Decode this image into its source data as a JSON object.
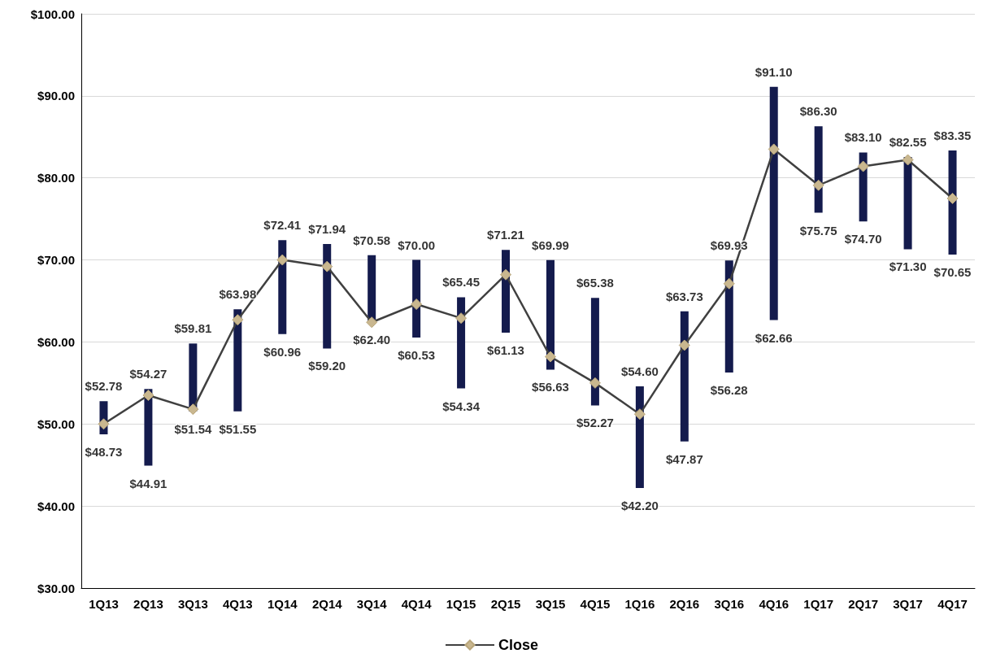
{
  "chart_data": {
    "type": "bar",
    "categories": [
      "1Q13",
      "2Q13",
      "3Q13",
      "4Q13",
      "1Q14",
      "2Q14",
      "3Q14",
      "4Q14",
      "1Q15",
      "2Q15",
      "3Q15",
      "4Q15",
      "1Q16",
      "2Q16",
      "3Q16",
      "4Q16",
      "1Q17",
      "2Q17",
      "3Q17",
      "4Q17"
    ],
    "series": [
      {
        "color": "#141b4d",
        "base": [
          48.73,
          44.91,
          51.54,
          51.55,
          60.96,
          59.2,
          62.4,
          60.53,
          54.34,
          61.13,
          56.63,
          52.27,
          42.2,
          47.87,
          56.28,
          62.66,
          75.75,
          74.7,
          71.3,
          70.65
        ],
        "values": [
          4.05,
          9.36,
          8.27,
          12.43,
          11.45,
          12.74,
          8.18,
          9.47,
          11.11,
          10.08,
          13.36,
          13.11,
          12.4,
          15.86,
          13.65,
          28.44,
          10.55,
          8.4,
          11.25,
          12.7
        ]
      },
      {
        "type": "line",
        "name": "Close",
        "color": "#404040",
        "colors": [
          "#c9b78f",
          "#c9b78f",
          "#c9b78f",
          "#c9b78f",
          "#c9b78f",
          "#c9b78f",
          "#c9b78f",
          "#c9b78f",
          "#c9b78f",
          "#c9b78f",
          "#c9b78f",
          "#c9b78f",
          "#c9b78f",
          "#c9b78f",
          "#c9b78f",
          "#c9b78f",
          "#c9b78f",
          "#c9b78f",
          "#c9b78f",
          "#c9b78f"
        ],
        "marker": "diamond",
        "values": [
          50.0,
          53.5,
          51.8,
          62.7,
          70.0,
          69.2,
          62.4,
          64.6,
          62.9,
          68.2,
          58.2,
          55.0,
          51.2,
          59.6,
          67.1,
          83.5,
          79.1,
          81.4,
          82.2,
          77.5
        ]
      }
    ],
    "ylim": [
      30,
      100
    ],
    "yticks": [
      {
        "value": 30,
        "label": "$30.00"
      },
      {
        "value": 40,
        "label": "$40.00"
      },
      {
        "value": 50,
        "label": "$50.00"
      },
      {
        "value": 60,
        "label": "$60.00"
      },
      {
        "value": 70,
        "label": "$70.00"
      },
      {
        "value": 80,
        "label": "$80.00"
      },
      {
        "value": 90,
        "label": "$90.00"
      },
      {
        "value": 100,
        "label": "$100.00"
      }
    ],
    "grid": "y",
    "legend": "bottom",
    "annotations": [
      {
        "text": "$52.78",
        "x": "1Q13",
        "y": 52.78
      },
      {
        "text": "$48.73",
        "x": "1Q13",
        "y": 48.73
      },
      {
        "text": "$54.27",
        "x": "2Q13",
        "y": 54.27
      },
      {
        "text": "$44.91",
        "x": "2Q13",
        "y": 44.91
      },
      {
        "text": "$59.81",
        "x": "3Q13",
        "y": 59.81
      },
      {
        "text": "$51.54",
        "x": "3Q13",
        "y": 51.54
      },
      {
        "text": "$63.98",
        "x": "4Q13",
        "y": 63.98
      },
      {
        "text": "$51.55",
        "x": "4Q13",
        "y": 51.55
      },
      {
        "text": "$72.41",
        "x": "1Q14",
        "y": 72.41
      },
      {
        "text": "$60.96",
        "x": "1Q14",
        "y": 60.96
      },
      {
        "text": "$71.94",
        "x": "2Q14",
        "y": 71.94
      },
      {
        "text": "$59.20",
        "x": "2Q14",
        "y": 59.2
      },
      {
        "text": "$70.58",
        "x": "3Q14",
        "y": 70.58
      },
      {
        "text": "$62.40",
        "x": "3Q14",
        "y": 62.4
      },
      {
        "text": "$70.00",
        "x": "4Q14",
        "y": 70.0
      },
      {
        "text": "$60.53",
        "x": "4Q14",
        "y": 60.53
      },
      {
        "text": "$65.45",
        "x": "1Q15",
        "y": 65.45
      },
      {
        "text": "$54.34",
        "x": "1Q15",
        "y": 54.34
      },
      {
        "text": "$71.21",
        "x": "2Q15",
        "y": 71.21
      },
      {
        "text": "$61.13",
        "x": "2Q15",
        "y": 61.13
      },
      {
        "text": "$69.99",
        "x": "3Q15",
        "y": 69.99
      },
      {
        "text": "$56.63",
        "x": "3Q15",
        "y": 56.63
      },
      {
        "text": "$65.38",
        "x": "4Q15",
        "y": 65.38
      },
      {
        "text": "$52.27",
        "x": "4Q15",
        "y": 52.27
      },
      {
        "text": "$54.60",
        "x": "1Q16",
        "y": 54.6
      },
      {
        "text": "$42.20",
        "x": "1Q16",
        "y": 42.2
      },
      {
        "text": "$63.73",
        "x": "2Q16",
        "y": 63.73
      },
      {
        "text": "$47.87",
        "x": "2Q16",
        "y": 47.87
      },
      {
        "text": "$69.93",
        "x": "3Q16",
        "y": 69.93
      },
      {
        "text": "$56.28",
        "x": "3Q16",
        "y": 56.28
      },
      {
        "text": "$91.10",
        "x": "4Q16",
        "y": 91.1
      },
      {
        "text": "$62.66",
        "x": "4Q16",
        "y": 62.66
      },
      {
        "text": "$86.30",
        "x": "1Q17",
        "y": 86.3
      },
      {
        "text": "$75.75",
        "x": "1Q17",
        "y": 75.75
      },
      {
        "text": "$83.10",
        "x": "2Q17",
        "y": 83.1
      },
      {
        "text": "$74.70",
        "x": "2Q17",
        "y": 74.7
      },
      {
        "text": "$82.55",
        "x": "3Q17",
        "y": 82.55
      },
      {
        "text": "$71.30",
        "x": "3Q17",
        "y": 71.3
      },
      {
        "text": "$83.35",
        "x": "4Q17",
        "y": 83.35
      },
      {
        "text": "$70.65",
        "x": "4Q17",
        "y": 70.65
      }
    ]
  }
}
